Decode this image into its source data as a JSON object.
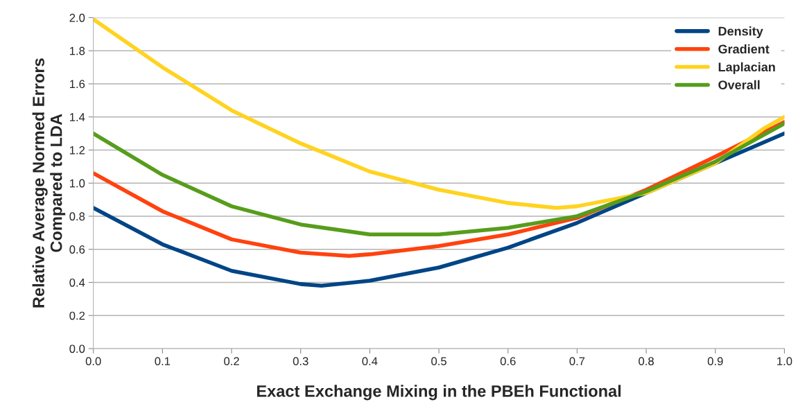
{
  "chart_data": {
    "type": "line",
    "xlabel": "Exact Exchange Mixing in the PBEh Functional",
    "ylabel": "Relative Average Normed Errors\nCompared to LDA",
    "xlim": [
      0,
      1
    ],
    "xticks": [
      {
        "value": 0,
        "label": "0.0"
      },
      0.1,
      0.2,
      0.3,
      0.4,
      0.5,
      0.6,
      0.7,
      0.8,
      0.9,
      {
        "value": 1,
        "label": "1.0"
      }
    ],
    "ylim": [
      0,
      2
    ],
    "yticks": [
      {
        "value": 0,
        "label": "0.0"
      },
      0.2,
      0.4,
      0.6,
      0.8,
      {
        "value": 1,
        "label": "1.0"
      },
      1.2,
      1.4,
      1.6,
      1.8,
      {
        "value": 2,
        "label": "2.0"
      }
    ],
    "grid": "y",
    "legend": "top right",
    "marker": "none",
    "line_style": "solid",
    "series": [
      {
        "name": "Density",
        "color": "#004586",
        "x": [
          0,
          0.1,
          0.2,
          0.3,
          0.33,
          0.4,
          0.5,
          0.6,
          0.7,
          0.8,
          0.9,
          1.0
        ],
        "values": [
          0.85,
          0.63,
          0.47,
          0.39,
          0.38,
          0.41,
          0.49,
          0.61,
          0.76,
          0.94,
          1.12,
          1.3
        ]
      },
      {
        "name": "Gradient",
        "color": "#ff420e",
        "x": [
          0,
          0.1,
          0.2,
          0.3,
          0.37,
          0.4,
          0.5,
          0.6,
          0.7,
          0.8,
          0.9,
          1.0
        ],
        "values": [
          1.06,
          0.83,
          0.66,
          0.58,
          0.56,
          0.57,
          0.62,
          0.69,
          0.79,
          0.96,
          1.16,
          1.37
        ]
      },
      {
        "name": "Laplacian",
        "color": "#ffd320",
        "x": [
          0,
          0.1,
          0.2,
          0.3,
          0.4,
          0.5,
          0.6,
          0.67,
          0.7,
          0.8,
          0.9,
          0.97,
          1.0
        ],
        "values": [
          1.99,
          1.7,
          1.44,
          1.24,
          1.07,
          0.96,
          0.88,
          0.85,
          0.86,
          0.94,
          1.12,
          1.33,
          1.4
        ]
      },
      {
        "name": "Overall",
        "color": "#579d1c",
        "x": [
          0,
          0.1,
          0.2,
          0.3,
          0.4,
          0.44,
          0.5,
          0.6,
          0.7,
          0.8,
          0.9,
          1.0
        ],
        "values": [
          1.3,
          1.05,
          0.86,
          0.75,
          0.69,
          0.69,
          0.69,
          0.73,
          0.8,
          0.95,
          1.13,
          1.36
        ]
      }
    ]
  }
}
